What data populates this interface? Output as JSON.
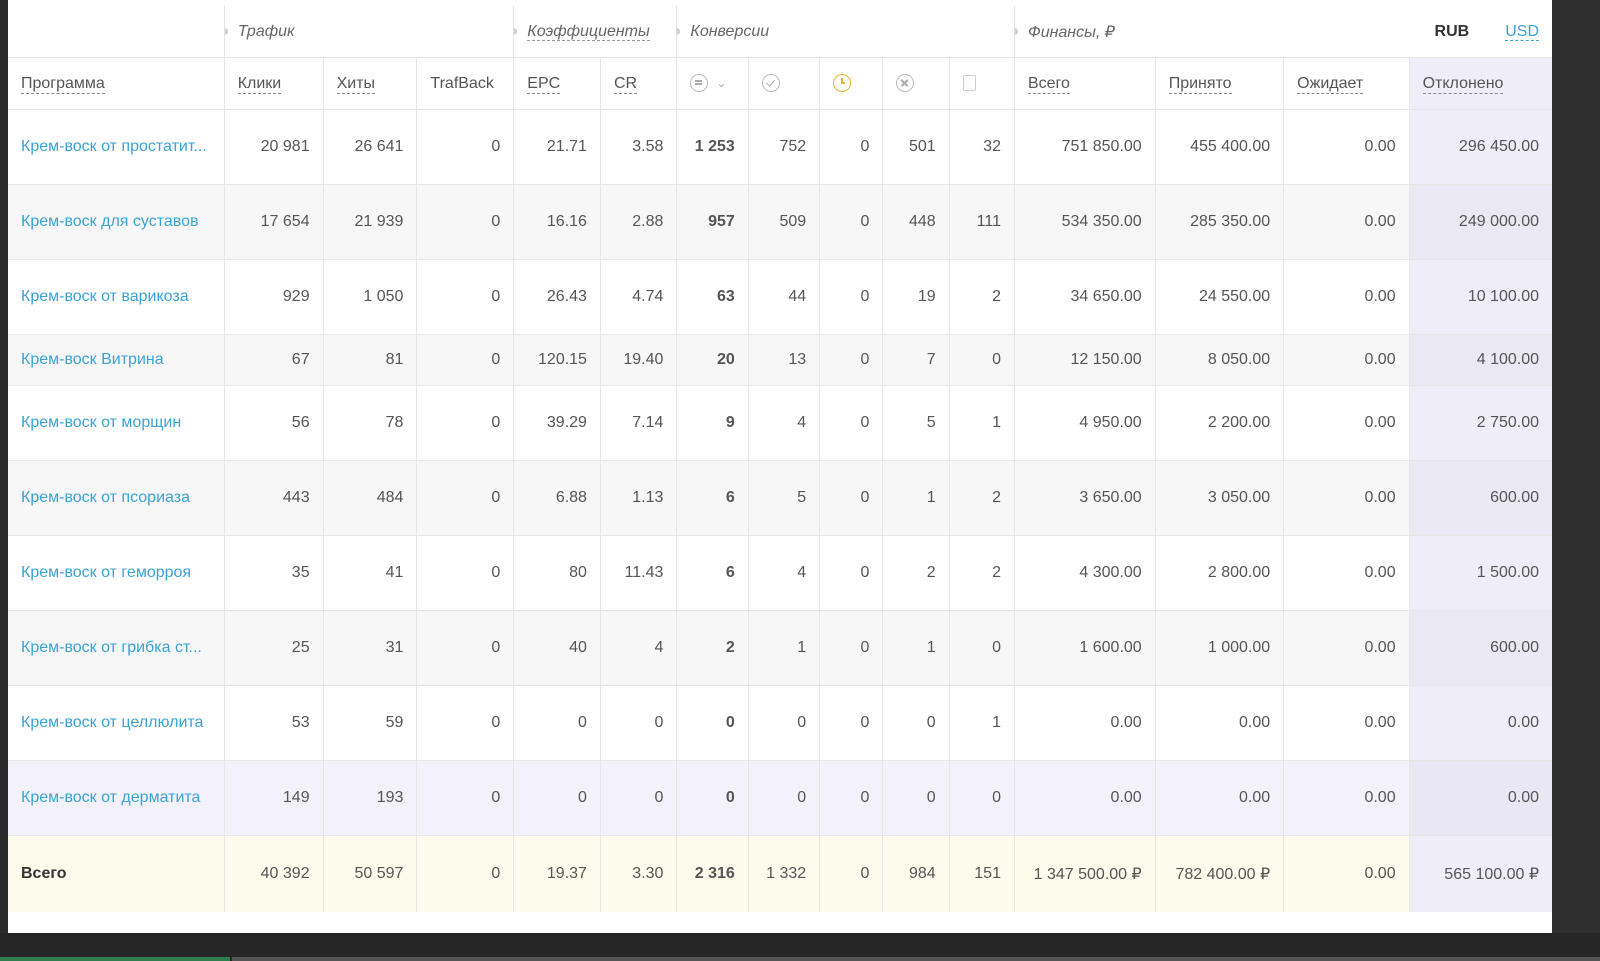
{
  "groups": {
    "traffic": "Трафик",
    "coefficients": "Коэффициенты",
    "conversions": "Конверсии",
    "finance": "Финансы, ₽"
  },
  "currency": {
    "rub": "RUB",
    "usd": "USD"
  },
  "columns": {
    "program": "Программа",
    "clicks": "Клики",
    "hits": "Хиты",
    "trafback": "TrafBack",
    "epc": "EPC",
    "cr": "CR",
    "total": "Всего",
    "accepted": "Принято",
    "pending": "Ожидает",
    "rejected": "Отклонено"
  },
  "icons": [
    "list-icon",
    "check-circle-icon",
    "clock-icon",
    "x-circle-icon",
    "trash-icon"
  ],
  "rows": [
    {
      "program": "Крем-воск от простатит...",
      "clicks": "20 981",
      "hits": "26 641",
      "trafback": "0",
      "epc": "21.71",
      "cr": "3.58",
      "conv_all": "1 253",
      "conv_ok": "752",
      "conv_wait": "0",
      "conv_rej": "501",
      "conv_trash": "32",
      "fin_total": "751 850.00",
      "fin_acc": "455 400.00",
      "fin_pend": "0.00",
      "fin_rej": "296 450.00"
    },
    {
      "program": "Крем-воск для суставов",
      "clicks": "17 654",
      "hits": "21 939",
      "trafback": "0",
      "epc": "16.16",
      "cr": "2.88",
      "conv_all": "957",
      "conv_ok": "509",
      "conv_wait": "0",
      "conv_rej": "448",
      "conv_trash": "111",
      "fin_total": "534 350.00",
      "fin_acc": "285 350.00",
      "fin_pend": "0.00",
      "fin_rej": "249 000.00"
    },
    {
      "program": "Крем-воск от варикоза",
      "clicks": "929",
      "hits": "1 050",
      "trafback": "0",
      "epc": "26.43",
      "cr": "4.74",
      "conv_all": "63",
      "conv_ok": "44",
      "conv_wait": "0",
      "conv_rej": "19",
      "conv_trash": "2",
      "fin_total": "34 650.00",
      "fin_acc": "24 550.00",
      "fin_pend": "0.00",
      "fin_rej": "10 100.00"
    },
    {
      "program": "Крем-воск Витрина",
      "clicks": "67",
      "hits": "81",
      "trafback": "0",
      "epc": "120.15",
      "cr": "19.40",
      "conv_all": "20",
      "conv_ok": "13",
      "conv_wait": "0",
      "conv_rej": "7",
      "conv_trash": "0",
      "fin_total": "12 150.00",
      "fin_acc": "8 050.00",
      "fin_pend": "0.00",
      "fin_rej": "4 100.00"
    },
    {
      "program": "Крем-воск от морщин",
      "clicks": "56",
      "hits": "78",
      "trafback": "0",
      "epc": "39.29",
      "cr": "7.14",
      "conv_all": "9",
      "conv_ok": "4",
      "conv_wait": "0",
      "conv_rej": "5",
      "conv_trash": "1",
      "fin_total": "4 950.00",
      "fin_acc": "2 200.00",
      "fin_pend": "0.00",
      "fin_rej": "2 750.00"
    },
    {
      "program": "Крем-воск от псориаза",
      "clicks": "443",
      "hits": "484",
      "trafback": "0",
      "epc": "6.88",
      "cr": "1.13",
      "conv_all": "6",
      "conv_ok": "5",
      "conv_wait": "0",
      "conv_rej": "1",
      "conv_trash": "2",
      "fin_total": "3 650.00",
      "fin_acc": "3 050.00",
      "fin_pend": "0.00",
      "fin_rej": "600.00"
    },
    {
      "program": "Крем-воск от геморроя",
      "clicks": "35",
      "hits": "41",
      "trafback": "0",
      "epc": "80",
      "cr": "11.43",
      "conv_all": "6",
      "conv_ok": "4",
      "conv_wait": "0",
      "conv_rej": "2",
      "conv_trash": "2",
      "fin_total": "4 300.00",
      "fin_acc": "2 800.00",
      "fin_pend": "0.00",
      "fin_rej": "1 500.00"
    },
    {
      "program": "Крем-воск от грибка ст...",
      "clicks": "25",
      "hits": "31",
      "trafback": "0",
      "epc": "40",
      "cr": "4",
      "conv_all": "2",
      "conv_ok": "1",
      "conv_wait": "0",
      "conv_rej": "1",
      "conv_trash": "0",
      "fin_total": "1 600.00",
      "fin_acc": "1 000.00",
      "fin_pend": "0.00",
      "fin_rej": "600.00"
    },
    {
      "program": "Крем-воск от целлюлита",
      "clicks": "53",
      "hits": "59",
      "trafback": "0",
      "epc": "0",
      "cr": "0",
      "conv_all": "0",
      "conv_ok": "0",
      "conv_wait": "0",
      "conv_rej": "0",
      "conv_trash": "1",
      "fin_total": "0.00",
      "fin_acc": "0.00",
      "fin_pend": "0.00",
      "fin_rej": "0.00"
    },
    {
      "program": "Крем-воск от дерматита",
      "clicks": "149",
      "hits": "193",
      "trafback": "0",
      "epc": "0",
      "cr": "0",
      "conv_all": "0",
      "conv_ok": "0",
      "conv_wait": "0",
      "conv_rej": "0",
      "conv_trash": "0",
      "fin_total": "0.00",
      "fin_acc": "0.00",
      "fin_pend": "0.00",
      "fin_rej": "0.00"
    }
  ],
  "totals": {
    "label": "Всего",
    "clicks": "40 392",
    "hits": "50 597",
    "trafback": "0",
    "epc": "19.37",
    "cr": "3.30",
    "conv_all": "2 316",
    "conv_ok": "1 332",
    "conv_wait": "0",
    "conv_rej": "984",
    "conv_trash": "151",
    "fin_total": "1 347 500.00 ₽",
    "fin_acc": "782 400.00 ₽",
    "fin_pend": "0.00",
    "fin_rej": "565 100.00 ₽"
  },
  "colors": {
    "link": "#3aa3d6",
    "rejected_col": "#efedf7",
    "totals_row": "#fdfbec",
    "clock": "#e8b43a"
  }
}
